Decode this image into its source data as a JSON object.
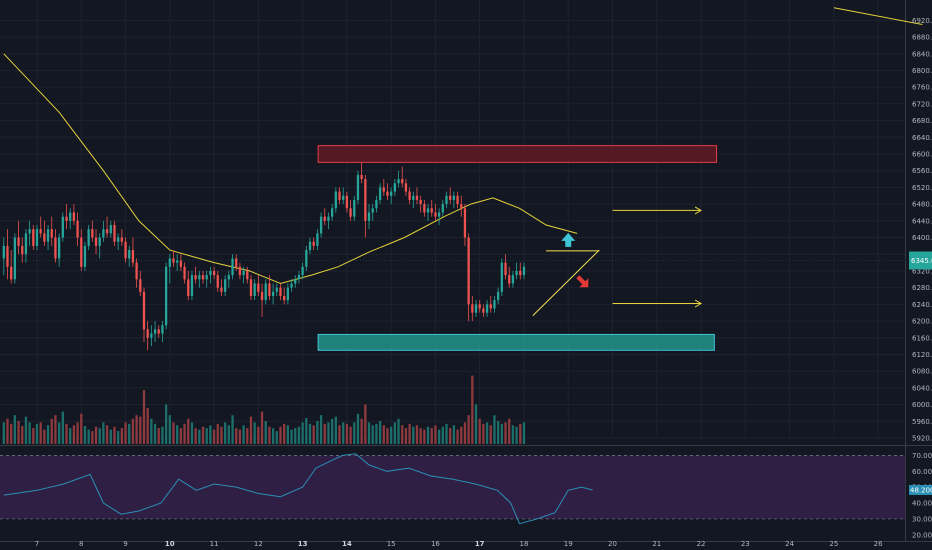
{
  "chart_data": {
    "type": "candlestick",
    "price_axis": {
      "min": 5920,
      "max": 6940,
      "ticks": [
        "6920.0",
        "6880.0",
        "6840.0",
        "6800.0",
        "6760.0",
        "6720.0",
        "6680.0",
        "6640.0",
        "6600.0",
        "6560.0",
        "6520.0",
        "6480.0",
        "6440.0",
        "6400.0",
        "6360.0",
        "6320.0",
        "6280.0",
        "6240.0",
        "6200.0",
        "6160.0",
        "6120.0",
        "6080.0",
        "6040.0",
        "6000.0",
        "5960.0",
        "5920.0"
      ],
      "tick_values": [
        6920,
        6880,
        6840,
        6800,
        6760,
        6720,
        6680,
        6640,
        6600,
        6560,
        6520,
        6480,
        6440,
        6400,
        6360,
        6320,
        6280,
        6240,
        6200,
        6160,
        6120,
        6080,
        6040,
        6000,
        5960,
        5920
      ],
      "current_price_label": "6345.0",
      "current_price": 6345,
      "current_price_color": "#26a69a"
    },
    "rsi_axis": {
      "min": 18,
      "max": 74,
      "ticks": [
        "70.0000",
        "60.0000",
        "50.0000",
        "40.0000",
        "30.0000",
        "20.0000"
      ],
      "tick_values": [
        70,
        60,
        50,
        40,
        30,
        20
      ],
      "overbought": 70,
      "oversold": 30,
      "current_label": "48.2000",
      "current_value": 48.2
    },
    "time_axis": {
      "labels": [
        "7",
        "8",
        "9",
        "10",
        "11",
        "12",
        "13",
        "14",
        "15",
        "16",
        "17",
        "18",
        "19",
        "20",
        "21",
        "22",
        "23",
        "24",
        "25",
        "26"
      ],
      "bold_labels": [
        "10",
        "13",
        "14",
        "17"
      ],
      "day_start": 7,
      "day_end": 26.8
    },
    "candle_start_day": 6.25,
    "candle_hours": 2,
    "candles": [
      [
        6350,
        6400,
        6310,
        6380
      ],
      [
        6380,
        6420,
        6300,
        6330
      ],
      [
        6330,
        6370,
        6290,
        6300
      ],
      [
        6300,
        6410,
        6290,
        6400
      ],
      [
        6400,
        6440,
        6360,
        6380
      ],
      [
        6380,
        6400,
        6340,
        6360
      ],
      [
        6360,
        6420,
        6340,
        6410
      ],
      [
        6410,
        6440,
        6380,
        6420
      ],
      [
        6420,
        6430,
        6370,
        6380
      ],
      [
        6380,
        6430,
        6370,
        6420
      ],
      [
        6420,
        6450,
        6400,
        6410
      ],
      [
        6410,
        6440,
        6380,
        6390
      ],
      [
        6390,
        6430,
        6370,
        6420
      ],
      [
        6420,
        6450,
        6380,
        6400
      ],
      [
        6400,
        6420,
        6340,
        6350
      ],
      [
        6350,
        6410,
        6330,
        6400
      ],
      [
        6400,
        6460,
        6390,
        6450
      ],
      [
        6450,
        6480,
        6420,
        6440
      ],
      [
        6440,
        6470,
        6420,
        6460
      ],
      [
        6460,
        6480,
        6430,
        6440
      ],
      [
        6440,
        6460,
        6380,
        6400
      ],
      [
        6400,
        6420,
        6320,
        6330
      ],
      [
        6330,
        6390,
        6320,
        6380
      ],
      [
        6380,
        6430,
        6370,
        6420
      ],
      [
        6420,
        6440,
        6390,
        6400
      ],
      [
        6400,
        6420,
        6360,
        6380
      ],
      [
        6380,
        6410,
        6350,
        6400
      ],
      [
        6400,
        6440,
        6390,
        6420
      ],
      [
        6420,
        6450,
        6400,
        6410
      ],
      [
        6410,
        6440,
        6400,
        6430
      ],
      [
        6430,
        6440,
        6380,
        6390
      ],
      [
        6390,
        6410,
        6370,
        6400
      ],
      [
        6400,
        6420,
        6380,
        6390
      ],
      [
        6390,
        6400,
        6340,
        6350
      ],
      [
        6350,
        6380,
        6330,
        6370
      ],
      [
        6370,
        6400,
        6330,
        6340
      ],
      [
        6340,
        6350,
        6280,
        6300
      ],
      [
        6300,
        6320,
        6260,
        6270
      ],
      [
        6270,
        6280,
        6150,
        6180
      ],
      [
        6180,
        6200,
        6130,
        6160
      ],
      [
        6160,
        6190,
        6140,
        6170
      ],
      [
        6170,
        6200,
        6150,
        6180
      ],
      [
        6180,
        6190,
        6160,
        6170
      ],
      [
        6170,
        6200,
        6150,
        6190
      ],
      [
        6190,
        6340,
        6180,
        6330
      ],
      [
        6330,
        6360,
        6290,
        6350
      ],
      [
        6350,
        6370,
        6330,
        6340
      ],
      [
        6340,
        6360,
        6320,
        6345
      ],
      [
        6345,
        6360,
        6320,
        6330
      ],
      [
        6330,
        6340,
        6290,
        6300
      ],
      [
        6300,
        6320,
        6250,
        6260
      ],
      [
        6260,
        6320,
        6250,
        6310
      ],
      [
        6310,
        6330,
        6290,
        6300
      ],
      [
        6300,
        6320,
        6280,
        6310
      ],
      [
        6310,
        6320,
        6290,
        6300
      ],
      [
        6300,
        6320,
        6280,
        6310
      ],
      [
        6310,
        6330,
        6290,
        6320
      ],
      [
        6320,
        6330,
        6300,
        6310
      ],
      [
        6310,
        6320,
        6270,
        6280
      ],
      [
        6280,
        6300,
        6260,
        6270
      ],
      [
        6270,
        6310,
        6260,
        6300
      ],
      [
        6300,
        6320,
        6280,
        6310
      ],
      [
        6310,
        6360,
        6300,
        6350
      ],
      [
        6350,
        6360,
        6320,
        6330
      ],
      [
        6330,
        6340,
        6300,
        6310
      ],
      [
        6310,
        6330,
        6290,
        6320
      ],
      [
        6320,
        6330,
        6290,
        6300
      ],
      [
        6300,
        6310,
        6250,
        6260
      ],
      [
        6260,
        6300,
        6250,
        6290
      ],
      [
        6290,
        6310,
        6260,
        6270
      ],
      [
        6270,
        6290,
        6210,
        6250
      ],
      [
        6250,
        6300,
        6240,
        6290
      ],
      [
        6290,
        6310,
        6250,
        6260
      ],
      [
        6260,
        6290,
        6240,
        6270
      ],
      [
        6270,
        6290,
        6260,
        6280
      ],
      [
        6280,
        6290,
        6250,
        6260
      ],
      [
        6260,
        6280,
        6240,
        6250
      ],
      [
        6250,
        6290,
        6240,
        6280
      ],
      [
        6280,
        6300,
        6270,
        6290
      ],
      [
        6290,
        6310,
        6280,
        6300
      ],
      [
        6300,
        6320,
        6290,
        6310
      ],
      [
        6310,
        6340,
        6300,
        6330
      ],
      [
        6330,
        6380,
        6320,
        6370
      ],
      [
        6370,
        6400,
        6360,
        6390
      ],
      [
        6390,
        6400,
        6370,
        6380
      ],
      [
        6380,
        6420,
        6370,
        6410
      ],
      [
        6410,
        6460,
        6400,
        6450
      ],
      [
        6450,
        6470,
        6430,
        6440
      ],
      [
        6440,
        6460,
        6420,
        6450
      ],
      [
        6450,
        6480,
        6440,
        6470
      ],
      [
        6470,
        6520,
        6460,
        6510
      ],
      [
        6510,
        6520,
        6480,
        6490
      ],
      [
        6490,
        6520,
        6480,
        6500
      ],
      [
        6500,
        6510,
        6460,
        6470
      ],
      [
        6470,
        6490,
        6440,
        6450
      ],
      [
        6450,
        6500,
        6440,
        6490
      ],
      [
        6490,
        6560,
        6480,
        6550
      ],
      [
        6550,
        6580,
        6530,
        6540
      ],
      [
        6540,
        6550,
        6400,
        6440
      ],
      [
        6440,
        6480,
        6420,
        6460
      ],
      [
        6460,
        6480,
        6440,
        6470
      ],
      [
        6470,
        6500,
        6460,
        6490
      ],
      [
        6490,
        6530,
        6480,
        6520
      ],
      [
        6520,
        6540,
        6500,
        6510
      ],
      [
        6510,
        6530,
        6490,
        6500
      ],
      [
        6500,
        6520,
        6480,
        6510
      ],
      [
        6510,
        6540,
        6500,
        6530
      ],
      [
        6530,
        6560,
        6520,
        6540
      ],
      [
        6540,
        6570,
        6520,
        6530
      ],
      [
        6530,
        6540,
        6500,
        6510
      ],
      [
        6510,
        6520,
        6480,
        6490
      ],
      [
        6490,
        6510,
        6470,
        6500
      ],
      [
        6500,
        6520,
        6480,
        6490
      ],
      [
        6490,
        6500,
        6460,
        6480
      ],
      [
        6480,
        6490,
        6450,
        6460
      ],
      [
        6460,
        6480,
        6440,
        6470
      ],
      [
        6470,
        6490,
        6450,
        6460
      ],
      [
        6460,
        6480,
        6440,
        6450
      ],
      [
        6450,
        6470,
        6430,
        6460
      ],
      [
        6460,
        6490,
        6450,
        6480
      ],
      [
        6480,
        6510,
        6470,
        6500
      ],
      [
        6500,
        6520,
        6480,
        6490
      ],
      [
        6490,
        6510,
        6470,
        6500
      ],
      [
        6500,
        6510,
        6470,
        6480
      ],
      [
        6480,
        6500,
        6450,
        6470
      ],
      [
        6470,
        6480,
        6380,
        6400
      ],
      [
        6400,
        6410,
        6200,
        6240
      ],
      [
        6240,
        6260,
        6200,
        6220
      ],
      [
        6220,
        6250,
        6210,
        6240
      ],
      [
        6240,
        6250,
        6220,
        6230
      ],
      [
        6230,
        6240,
        6210,
        6220
      ],
      [
        6220,
        6250,
        6210,
        6240
      ],
      [
        6240,
        6260,
        6220,
        6230
      ],
      [
        6230,
        6260,
        6220,
        6250
      ],
      [
        6250,
        6280,
        6240,
        6270
      ],
      [
        6270,
        6350,
        6260,
        6340
      ],
      [
        6340,
        6360,
        6300,
        6310
      ],
      [
        6310,
        6330,
        6280,
        6290
      ],
      [
        6290,
        6320,
        6280,
        6310
      ],
      [
        6310,
        6340,
        6300,
        6320
      ],
      [
        6320,
        6340,
        6300,
        6310
      ],
      [
        6310,
        6340,
        6300,
        6330
      ]
    ],
    "volumes": [
      30,
      35,
      28,
      40,
      32,
      25,
      38,
      30,
      22,
      28,
      30,
      20,
      26,
      35,
      40,
      30,
      45,
      28,
      22,
      26,
      30,
      42,
      25,
      20,
      18,
      24,
      22,
      30,
      26,
      20,
      24,
      18,
      22,
      30,
      28,
      35,
      40,
      38,
      75,
      50,
      35,
      28,
      22,
      24,
      55,
      40,
      30,
      26,
      22,
      28,
      35,
      30,
      22,
      20,
      24,
      22,
      26,
      20,
      28,
      24,
      30,
      26,
      40,
      22,
      20,
      26,
      22,
      38,
      30,
      24,
      45,
      32,
      24,
      22,
      18,
      24,
      28,
      26,
      20,
      22,
      24,
      30,
      36,
      28,
      26,
      32,
      40,
      28,
      30,
      35,
      38,
      26,
      30,
      28,
      24,
      30,
      42,
      35,
      55,
      30,
      26,
      28,
      32,
      26,
      22,
      24,
      30,
      35,
      26,
      22,
      28,
      24,
      26,
      22,
      20,
      24,
      22,
      26,
      20,
      24,
      28,
      22,
      26,
      20,
      24,
      30,
      40,
      95,
      55,
      35,
      28,
      30,
      26,
      40,
      32,
      28,
      30,
      35,
      26,
      24,
      28,
      30
    ],
    "ma": [
      [
        6.25,
        6840
      ],
      [
        7.5,
        6700
      ],
      [
        8.5,
        6560
      ],
      [
        9.3,
        6440
      ],
      [
        10,
        6370
      ],
      [
        11,
        6340
      ],
      [
        11.8,
        6320
      ],
      [
        12.5,
        6290
      ],
      [
        13.2,
        6310
      ],
      [
        13.8,
        6330
      ],
      [
        14.5,
        6365
      ],
      [
        15.3,
        6400
      ],
      [
        16.2,
        6450
      ],
      [
        16.8,
        6480
      ],
      [
        17.3,
        6495
      ],
      [
        17.9,
        6470
      ],
      [
        18.5,
        6430
      ],
      [
        19.2,
        6410
      ]
    ],
    "ma_tail": [
      [
        25.0,
        6950
      ],
      [
        27.0,
        6910
      ]
    ],
    "rsi": [
      [
        6.25,
        45
      ],
      [
        7.0,
        48
      ],
      [
        7.6,
        52
      ],
      [
        8.2,
        58
      ],
      [
        8.5,
        40
      ],
      [
        8.9,
        33
      ],
      [
        9.3,
        35
      ],
      [
        9.8,
        40
      ],
      [
        10.2,
        55
      ],
      [
        10.6,
        48
      ],
      [
        11.0,
        52
      ],
      [
        11.5,
        50
      ],
      [
        12.0,
        46
      ],
      [
        12.5,
        44
      ],
      [
        13.0,
        50
      ],
      [
        13.3,
        62
      ],
      [
        13.6,
        66
      ],
      [
        13.9,
        70
      ],
      [
        14.2,
        71
      ],
      [
        14.5,
        64
      ],
      [
        14.9,
        60
      ],
      [
        15.4,
        62
      ],
      [
        15.9,
        57
      ],
      [
        16.4,
        55
      ],
      [
        16.9,
        52
      ],
      [
        17.4,
        48
      ],
      [
        17.7,
        40
      ],
      [
        17.9,
        27
      ],
      [
        18.3,
        30
      ],
      [
        18.7,
        34
      ],
      [
        19.0,
        48
      ],
      [
        19.3,
        50
      ],
      [
        19.55,
        48.2
      ]
    ],
    "zones": [
      {
        "kind": "resistance",
        "top": 6620,
        "bottom": 6580,
        "start_day": 13.35,
        "end_day": 22.35,
        "fill": "#611a25",
        "stroke": "#e53c48"
      },
      {
        "kind": "support",
        "top": 6168,
        "bottom": 6130,
        "start_day": 13.35,
        "end_day": 22.3,
        "fill": "#26a69a",
        "stroke": "#40c4d8"
      }
    ],
    "triangle": {
      "top_left": [
        18.5,
        6368
      ],
      "top_right": [
        19.7,
        6368
      ],
      "bottom_left": [
        18.2,
        6213
      ],
      "apex": [
        19.7,
        6370
      ]
    },
    "arrows": [
      {
        "from_day": 20.0,
        "to_day": 22.0,
        "value": 6465
      },
      {
        "from_day": 20.0,
        "to_day": 22.0,
        "value": 6242
      }
    ],
    "signals": [
      {
        "direction": "up",
        "day": 19.0,
        "value": 6392,
        "color": "#40c4d8"
      },
      {
        "direction": "down",
        "day": 19.25,
        "value": 6293,
        "color": "#e53935"
      }
    ],
    "colors": {
      "up": "#26a69a",
      "down": "#ef5350",
      "volume_up": "#1d6f6a",
      "volume_down": "#8f3a3e",
      "ma": "#e5d23b",
      "rsi_line": "#2a8fb5",
      "rsi_band": "#301f44",
      "grid": "#1e2230",
      "axis_text": "#b2b5be",
      "axis_line": "#363a45"
    }
  }
}
